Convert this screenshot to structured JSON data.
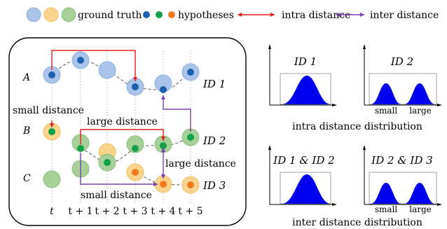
{
  "legend": {
    "ground_truth": "ground truth",
    "hypotheses": "hypotheses",
    "intra": "intra distance",
    "inter": "inter distance"
  },
  "rows": {
    "a": "A",
    "b": "B",
    "c": "C"
  },
  "ids": {
    "id1": "ID 1",
    "id2": "ID 2",
    "id3": "ID 3"
  },
  "annotations": {
    "small_top": "small distance",
    "large_mid": "large distance",
    "large_right": "large distance",
    "small_bottom": "small distance"
  },
  "time_labels": [
    "t",
    "t + 1",
    "t + 2",
    "t + 3",
    "t + 4",
    "t + 5"
  ],
  "charts": {
    "c1_title": "ID 1",
    "c2_title": "ID 2",
    "c3_title": "ID 1 & ID 2",
    "c4_title": "ID 2 & ID 3",
    "small": "small",
    "large": "large",
    "intra_caption": "intra distance distribution",
    "inter_caption": "inter distance distribution"
  },
  "colors": {
    "gt_blue": "#a9c4e8",
    "gt_orange": "#f9d48c",
    "gt_green": "#a7cf98",
    "hyp_blue": "#1f5fb0",
    "hyp_green": "#12a04a",
    "hyp_orange": "#ef7a22",
    "intra": "#e0201e",
    "inter": "#7b3fb3",
    "fill": "#0000ee"
  }
}
